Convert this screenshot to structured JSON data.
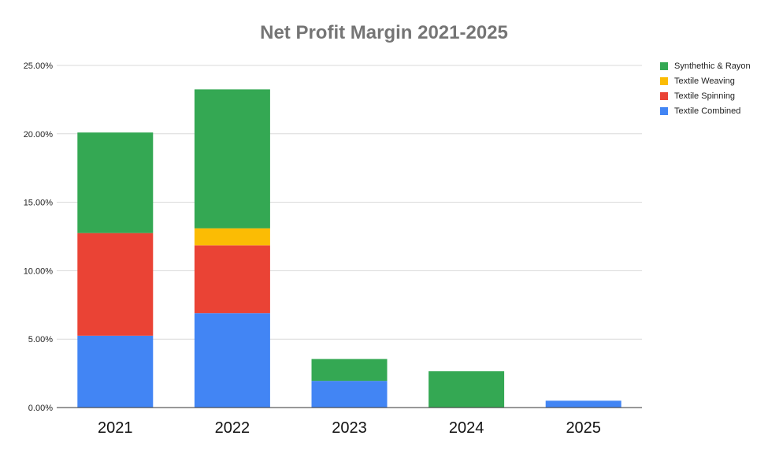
{
  "chart_data": {
    "type": "bar",
    "stacked": true,
    "title": "Net Profit Margin 2021-2025",
    "xlabel": "",
    "ylabel": "",
    "categories": [
      "2021",
      "2022",
      "2023",
      "2024",
      "2025"
    ],
    "ylim": [
      0,
      25
    ],
    "yticks": [
      "0.00%",
      "5.00%",
      "10.00%",
      "15.00%",
      "20.00%",
      "25.00%"
    ],
    "grid": true,
    "legend_position": "top-right",
    "series": [
      {
        "name": "Textile Combined",
        "color": "#4285f4",
        "values": [
          5.25,
          6.9,
          1.95,
          0,
          0.5
        ]
      },
      {
        "name": "Textile Spinning",
        "color": "#ea4335",
        "values": [
          7.5,
          4.95,
          0,
          0,
          0
        ]
      },
      {
        "name": "Textile Weaving",
        "color": "#fbbc04",
        "values": [
          0,
          1.25,
          0,
          0,
          0
        ]
      },
      {
        "name": "Synthethic & Rayon",
        "color": "#34a853",
        "values": [
          7.35,
          10.15,
          1.6,
          2.65,
          0
        ]
      }
    ],
    "legend_order": [
      "Synthethic & Rayon",
      "Textile Weaving",
      "Textile Spinning",
      "Textile Combined"
    ]
  }
}
